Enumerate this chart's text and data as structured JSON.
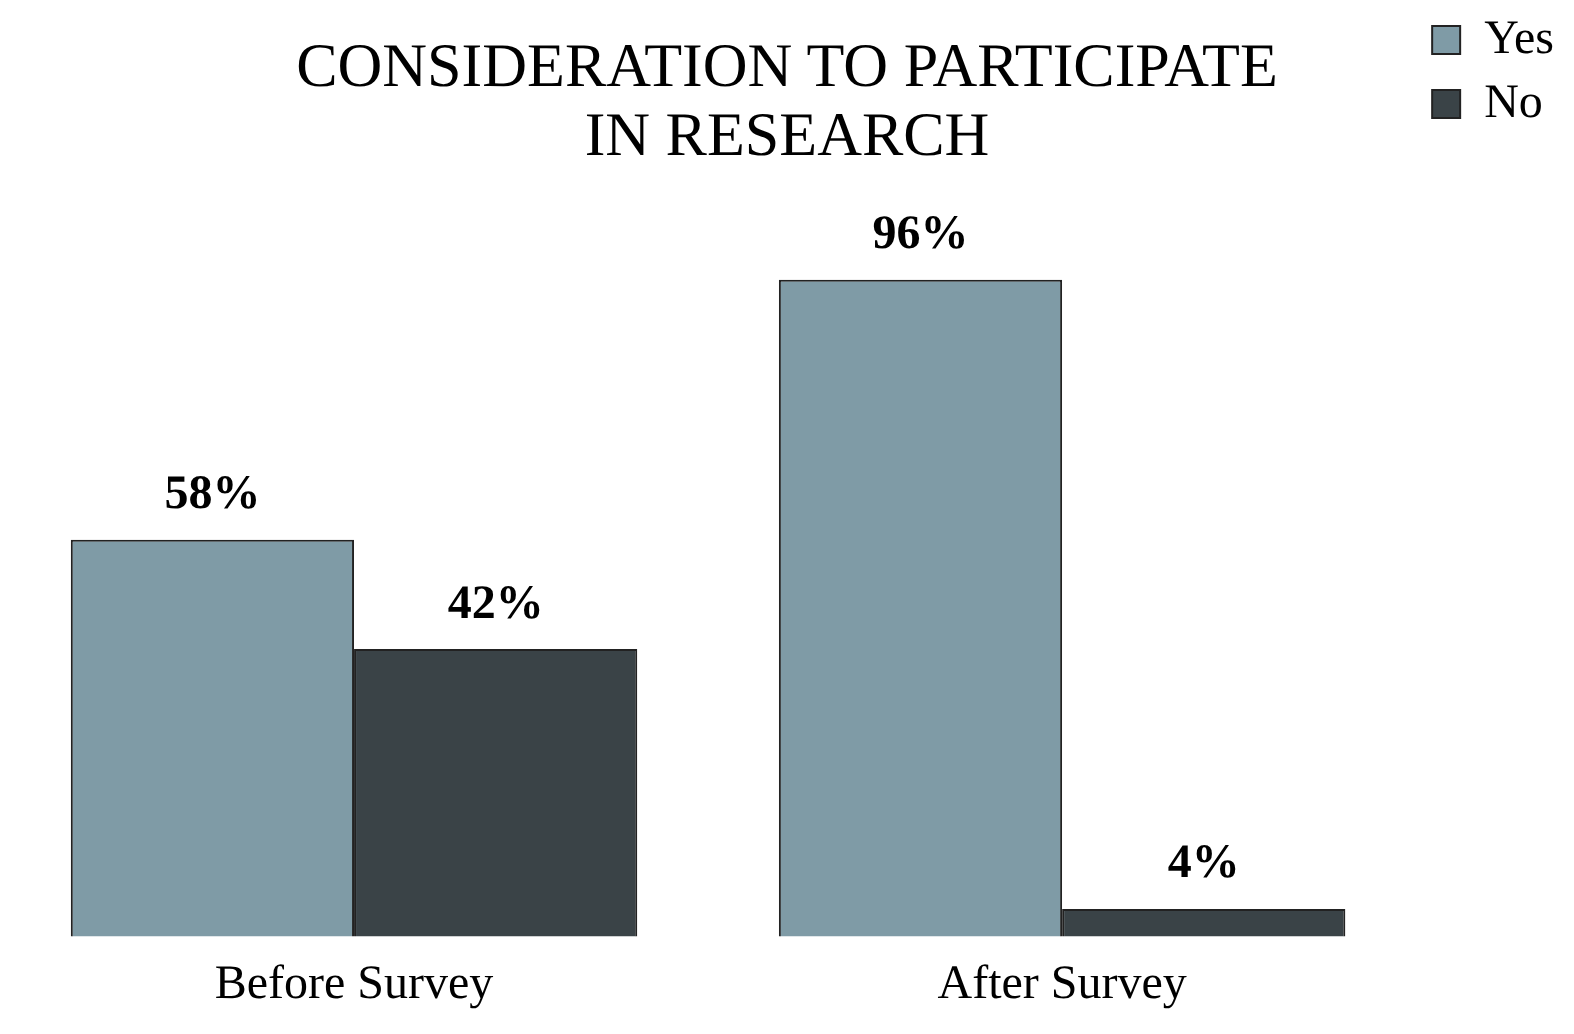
{
  "chart_data": {
    "type": "bar",
    "title": "CONSIDERATION TO PARTICIPATE\nIN RESEARCH",
    "categories": [
      "Before Survey",
      "After Survey"
    ],
    "series": [
      {
        "name": "Yes",
        "color": "#7f9ba6",
        "values": [
          58,
          96
        ],
        "value_labels": [
          "58%",
          "96%"
        ]
      },
      {
        "name": "No",
        "color": "#3a4347",
        "values": [
          42,
          4
        ],
        "value_labels": [
          "42%",
          "4%"
        ]
      }
    ],
    "grid": false,
    "legend": "top right"
  }
}
